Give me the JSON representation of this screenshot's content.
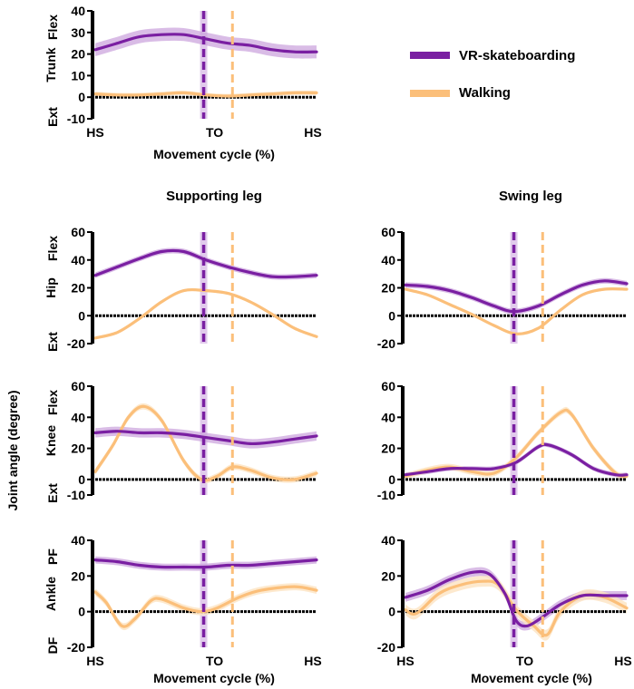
{
  "legend": {
    "vr_label": "VR-skateboarding",
    "walk_label": "Walking"
  },
  "colors": {
    "vr": "#7a1fa2",
    "vr_band": "#c9a0dc",
    "walk": "#fbbf7a",
    "walk_band": "#fde3c2",
    "axis": "#000000"
  },
  "figure": {
    "y_axis_label": "Joint angle (degree)",
    "supporting_header": "Supporting leg",
    "swing_header": "Swing leg",
    "x_axis_label": "Movement cycle (%)",
    "x_ticks": [
      "HS",
      "TO",
      "HS"
    ]
  },
  "chart_data": [
    {
      "id": "trunk",
      "type": "line",
      "title": "Trunk",
      "ylabel": "Trunk",
      "ylabel_top": "Flex",
      "ylabel_bottom": "Ext",
      "ylim": [
        -10,
        40
      ],
      "yticks": [
        -10,
        0,
        10,
        20,
        30,
        40
      ],
      "xlim": [
        0,
        100
      ],
      "to_vr": 49,
      "to_walk": 62,
      "show_xticks": true,
      "series": [
        {
          "name": "VR-skateboarding",
          "band": 3,
          "points": [
            [
              0,
              22
            ],
            [
              10,
              25
            ],
            [
              20,
              28
            ],
            [
              30,
              29
            ],
            [
              40,
              29
            ],
            [
              50,
              27
            ],
            [
              60,
              25
            ],
            [
              70,
              24
            ],
            [
              80,
              22
            ],
            [
              90,
              21
            ],
            [
              100,
              21
            ]
          ]
        },
        {
          "name": "Walking",
          "band": 1,
          "points": [
            [
              0,
              1.5
            ],
            [
              10,
              1
            ],
            [
              20,
              1
            ],
            [
              30,
              1.5
            ],
            [
              40,
              2
            ],
            [
              50,
              1
            ],
            [
              60,
              0.5
            ],
            [
              70,
              1
            ],
            [
              80,
              1.5
            ],
            [
              90,
              2
            ],
            [
              100,
              2
            ]
          ]
        }
      ]
    },
    {
      "id": "hip-support",
      "type": "line",
      "title": "Hip supporting leg",
      "ylabel": "Hip",
      "ylabel_top": "Flex",
      "ylabel_bottom": "Ext",
      "ylim": [
        -20,
        60
      ],
      "yticks": [
        -20,
        0,
        20,
        40,
        60
      ],
      "xlim": [
        0,
        100
      ],
      "to_vr": 49,
      "to_walk": 62,
      "show_xticks": false,
      "series": [
        {
          "name": "VR-skateboarding",
          "band": 2,
          "points": [
            [
              0,
              29
            ],
            [
              10,
              35
            ],
            [
              20,
              41
            ],
            [
              30,
              46
            ],
            [
              40,
              46
            ],
            [
              50,
              40
            ],
            [
              60,
              35
            ],
            [
              70,
              31
            ],
            [
              80,
              28
            ],
            [
              90,
              28
            ],
            [
              100,
              29
            ]
          ]
        },
        {
          "name": "Walking",
          "band": 1,
          "points": [
            [
              0,
              -16
            ],
            [
              10,
              -12
            ],
            [
              20,
              -2
            ],
            [
              30,
              10
            ],
            [
              40,
              18
            ],
            [
              50,
              18
            ],
            [
              60,
              16
            ],
            [
              70,
              10
            ],
            [
              80,
              1
            ],
            [
              90,
              -9
            ],
            [
              100,
              -15
            ]
          ]
        }
      ]
    },
    {
      "id": "hip-swing",
      "type": "line",
      "title": "Hip swing leg",
      "ylabel": "",
      "ylabel_top": "",
      "ylabel_bottom": "",
      "ylim": [
        -20,
        60
      ],
      "yticks": [
        -20,
        0,
        20,
        40,
        60
      ],
      "xlim": [
        0,
        100
      ],
      "to_vr": 49,
      "to_walk": 62,
      "show_xticks": false,
      "series": [
        {
          "name": "VR-skateboarding",
          "band": 2,
          "points": [
            [
              0,
              22
            ],
            [
              10,
              21
            ],
            [
              20,
              18
            ],
            [
              30,
              13
            ],
            [
              40,
              7
            ],
            [
              49,
              3
            ],
            [
              60,
              7
            ],
            [
              70,
              15
            ],
            [
              80,
              22
            ],
            [
              90,
              25
            ],
            [
              100,
              23
            ]
          ]
        },
        {
          "name": "Walking",
          "band": 1,
          "points": [
            [
              0,
              19
            ],
            [
              10,
              15
            ],
            [
              20,
              8
            ],
            [
              30,
              1
            ],
            [
              40,
              -7
            ],
            [
              50,
              -13
            ],
            [
              60,
              -9
            ],
            [
              70,
              4
            ],
            [
              80,
              15
            ],
            [
              90,
              19
            ],
            [
              100,
              19
            ]
          ]
        }
      ]
    },
    {
      "id": "knee-support",
      "type": "line",
      "title": "Knee supporting leg",
      "ylabel": "Knee",
      "ylabel_top": "Flex",
      "ylabel_bottom": "Ext",
      "ylim": [
        -10,
        60
      ],
      "yticks": [
        -10,
        0,
        20,
        40,
        60
      ],
      "xlim": [
        0,
        100
      ],
      "to_vr": 49,
      "to_walk": 62,
      "show_xticks": false,
      "series": [
        {
          "name": "VR-skateboarding",
          "band": 3,
          "points": [
            [
              0,
              30
            ],
            [
              10,
              31
            ],
            [
              20,
              30
            ],
            [
              30,
              30
            ],
            [
              40,
              29
            ],
            [
              50,
              27
            ],
            [
              60,
              25
            ],
            [
              70,
              23
            ],
            [
              80,
              24
            ],
            [
              90,
              26
            ],
            [
              100,
              28
            ]
          ]
        },
        {
          "name": "Walking",
          "band": 2,
          "points": [
            [
              0,
              5
            ],
            [
              8,
              22
            ],
            [
              15,
              40
            ],
            [
              22,
              47
            ],
            [
              30,
              38
            ],
            [
              40,
              12
            ],
            [
              48,
              0
            ],
            [
              55,
              2
            ],
            [
              62,
              8
            ],
            [
              70,
              6
            ],
            [
              80,
              1
            ],
            [
              90,
              0
            ],
            [
              100,
              4
            ]
          ]
        }
      ]
    },
    {
      "id": "knee-swing",
      "type": "line",
      "title": "Knee swing leg",
      "ylabel": "",
      "ylabel_top": "",
      "ylabel_bottom": "",
      "ylim": [
        -10,
        60
      ],
      "yticks": [
        -10,
        0,
        20,
        40,
        60
      ],
      "xlim": [
        0,
        100
      ],
      "to_vr": 49,
      "to_walk": 62,
      "show_xticks": false,
      "series": [
        {
          "name": "VR-skateboarding",
          "band": 1.5,
          "points": [
            [
              0,
              3
            ],
            [
              10,
              5
            ],
            [
              20,
              7
            ],
            [
              30,
              7
            ],
            [
              40,
              7
            ],
            [
              50,
              11
            ],
            [
              60,
              21
            ],
            [
              65,
              22
            ],
            [
              75,
              16
            ],
            [
              85,
              7
            ],
            [
              95,
              3
            ],
            [
              100,
              3
            ]
          ]
        },
        {
          "name": "Walking",
          "band": 2,
          "points": [
            [
              0,
              2
            ],
            [
              10,
              6
            ],
            [
              20,
              8
            ],
            [
              30,
              5
            ],
            [
              40,
              4
            ],
            [
              50,
              14
            ],
            [
              60,
              30
            ],
            [
              70,
              43
            ],
            [
              75,
              42
            ],
            [
              85,
              20
            ],
            [
              95,
              4
            ],
            [
              100,
              2
            ]
          ]
        }
      ]
    },
    {
      "id": "ankle-support",
      "type": "line",
      "title": "Ankle supporting leg",
      "ylabel": "Ankle",
      "ylabel_top": "PF",
      "ylabel_bottom": "DF",
      "ylim": [
        -20,
        40
      ],
      "yticks": [
        -20,
        0,
        20,
        40
      ],
      "xlim": [
        0,
        100
      ],
      "to_vr": 49,
      "to_walk": 62,
      "show_xticks": true,
      "series": [
        {
          "name": "VR-skateboarding",
          "band": 2,
          "points": [
            [
              0,
              29
            ],
            [
              10,
              28
            ],
            [
              20,
              26
            ],
            [
              30,
              25
            ],
            [
              40,
              25
            ],
            [
              50,
              25
            ],
            [
              60,
              26
            ],
            [
              70,
              26
            ],
            [
              80,
              27
            ],
            [
              90,
              28
            ],
            [
              100,
              29
            ]
          ]
        },
        {
          "name": "Walking",
          "band": 2,
          "points": [
            [
              0,
              11
            ],
            [
              5,
              5
            ],
            [
              12,
              -8
            ],
            [
              18,
              -4
            ],
            [
              25,
              6
            ],
            [
              30,
              7
            ],
            [
              40,
              2
            ],
            [
              48,
              0
            ],
            [
              55,
              2
            ],
            [
              65,
              8
            ],
            [
              75,
              12
            ],
            [
              90,
              14
            ],
            [
              100,
              12
            ]
          ]
        }
      ]
    },
    {
      "id": "ankle-swing",
      "type": "line",
      "title": "Ankle swing leg",
      "ylabel": "",
      "ylabel_top": "",
      "ylabel_bottom": "",
      "ylim": [
        -20,
        40
      ],
      "yticks": [
        -20,
        0,
        20,
        40
      ],
      "xlim": [
        0,
        100
      ],
      "to_vr": 49,
      "to_walk": 62,
      "show_xticks": true,
      "series": [
        {
          "name": "VR-skateboarding",
          "band": 2.5,
          "points": [
            [
              0,
              8
            ],
            [
              10,
              12
            ],
            [
              20,
              18
            ],
            [
              30,
              22
            ],
            [
              38,
              21
            ],
            [
              45,
              10
            ],
            [
              50,
              -5
            ],
            [
              55,
              -8
            ],
            [
              62,
              -3
            ],
            [
              70,
              4
            ],
            [
              80,
              9
            ],
            [
              90,
              9
            ],
            [
              100,
              9
            ]
          ]
        },
        {
          "name": "Walking",
          "band": 3,
          "points": [
            [
              0,
              1
            ],
            [
              5,
              -1
            ],
            [
              15,
              10
            ],
            [
              25,
              15
            ],
            [
              35,
              17
            ],
            [
              42,
              15
            ],
            [
              50,
              1
            ],
            [
              58,
              -8
            ],
            [
              64,
              -13
            ],
            [
              70,
              0
            ],
            [
              80,
              9
            ],
            [
              90,
              8
            ],
            [
              100,
              2
            ]
          ]
        }
      ]
    }
  ]
}
